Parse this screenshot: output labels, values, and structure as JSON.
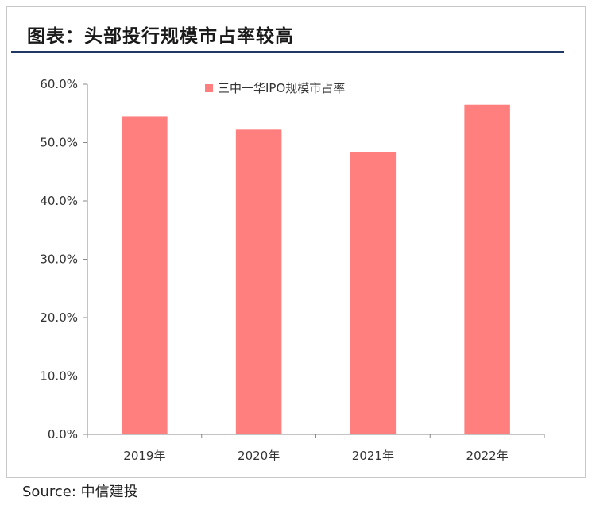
{
  "title": "图表：头部投行规模市占率较高",
  "source": "Source:  中信建投",
  "chart_data": {
    "type": "bar",
    "categories": [
      "2019年",
      "2020年",
      "2021年",
      "2022年"
    ],
    "series": [
      {
        "name": "三中一华IPO规模市占率",
        "values": [
          54.5,
          52.2,
          48.3,
          56.5
        ],
        "color": "#ff7f7f"
      }
    ],
    "ylim": [
      0,
      60
    ],
    "yticks": [
      0,
      10,
      20,
      30,
      40,
      50,
      60
    ],
    "ytick_labels": [
      "0.0%",
      "10.0%",
      "20.0%",
      "30.0%",
      "40.0%",
      "50.0%",
      "60.0%"
    ],
    "legend_position": "top-center",
    "grid": false
  }
}
